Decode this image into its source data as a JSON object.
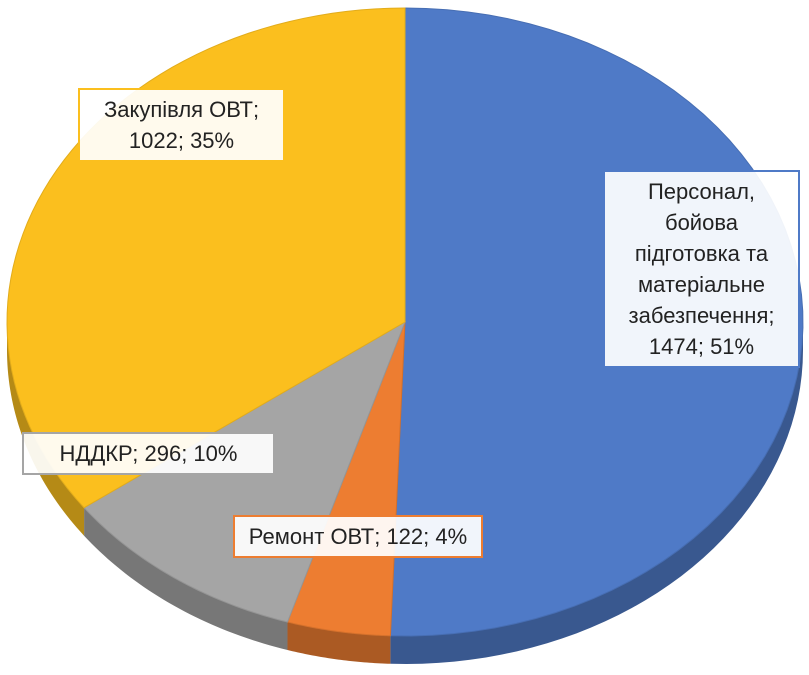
{
  "chart_data": {
    "type": "pie3d",
    "categories": [
      "Персонал, бойова підготовка та матеріальне забезпечення",
      "Ремонт ОВТ",
      "НДДКР",
      "Закупівля ОВТ"
    ],
    "values": [
      1474,
      122,
      296,
      1022
    ],
    "percent_labels": [
      "51%",
      "4%",
      "10%",
      "35%"
    ],
    "label_separator": "; ",
    "colors": [
      "#4f7ac7",
      "#ed7d31",
      "#a5a5a5",
      "#fbbf1e"
    ]
  }
}
